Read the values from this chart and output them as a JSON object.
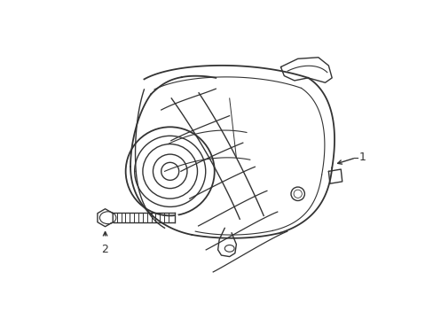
{
  "background_color": "#ffffff",
  "line_color": "#333333",
  "line_width": 1.0,
  "label_1": "1",
  "label_2": "2",
  "fig_width": 4.89,
  "fig_height": 3.6,
  "dpi": 100
}
